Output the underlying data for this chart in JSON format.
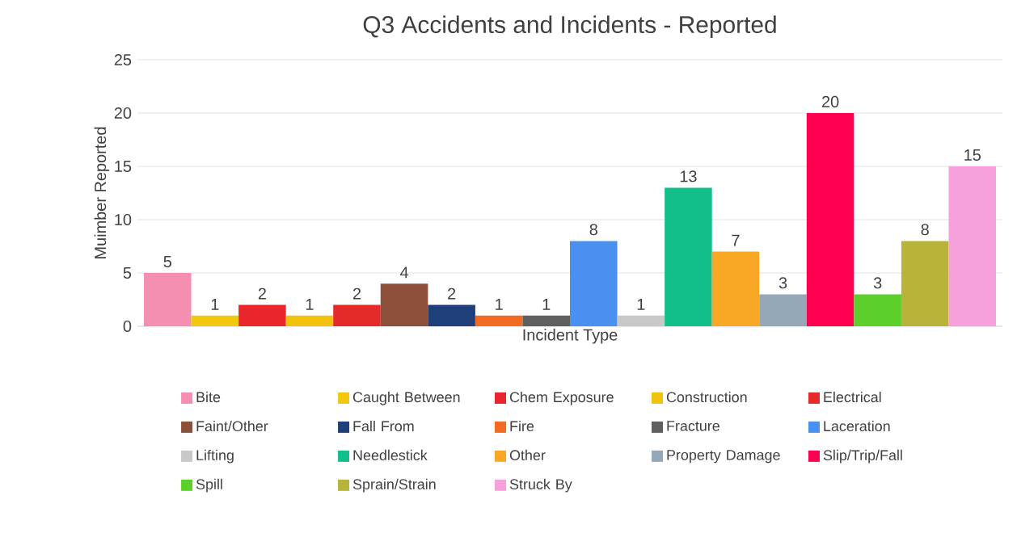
{
  "chart_data": {
    "type": "bar",
    "title": "Q3 Accidents and Incidents - Reported",
    "xlabel": "Incident Type",
    "ylabel": "Muimber Reported",
    "categories": [
      null
    ],
    "series": [
      {
        "name": "Bite",
        "color": "#f48fb1",
        "values": [
          5
        ]
      },
      {
        "name": "Caught Between",
        "color": "#f2c80f",
        "values": [
          1
        ]
      },
      {
        "name": "Chem Exposure",
        "color": "#e8262b",
        "values": [
          2
        ]
      },
      {
        "name": "Construction",
        "color": "#f2c20f",
        "values": [
          1
        ]
      },
      {
        "name": "Electrical",
        "color": "#e52a2a",
        "values": [
          2
        ]
      },
      {
        "name": "Faint/Other",
        "color": "#8b4f3a",
        "values": [
          4
        ]
      },
      {
        "name": "Fall From",
        "color": "#1f3f7a",
        "values": [
          2
        ]
      },
      {
        "name": "Fire",
        "color": "#f26b22",
        "values": [
          1
        ]
      },
      {
        "name": "Fracture",
        "color": "#5f5f5f",
        "values": [
          1
        ]
      },
      {
        "name": "Laceration",
        "color": "#4a90f0",
        "values": [
          8
        ]
      },
      {
        "name": "Lifting",
        "color": "#c8c8c8",
        "values": [
          1
        ]
      },
      {
        "name": "Needlestick",
        "color": "#12bf8a",
        "values": [
          13
        ]
      },
      {
        "name": "Other",
        "color": "#f9a825",
        "values": [
          7
        ]
      },
      {
        "name": "Property Damage",
        "color": "#94a8b8",
        "values": [
          3
        ]
      },
      {
        "name": "Slip/Trip/Fall",
        "color": "#ff0050",
        "values": [
          20
        ]
      },
      {
        "name": "Spill",
        "color": "#5ccf2a",
        "values": [
          3
        ]
      },
      {
        "name": "Sprain/Strain",
        "color": "#b8b43a",
        "values": [
          8
        ]
      },
      {
        "name": "Struck By",
        "color": "#f7a1dc",
        "values": [
          15
        ]
      }
    ],
    "ylim": [
      0,
      25
    ],
    "yticks": [
      0,
      5,
      10,
      15,
      20,
      25
    ],
    "grid": "y",
    "legend": "bottom",
    "data_labels": true
  }
}
